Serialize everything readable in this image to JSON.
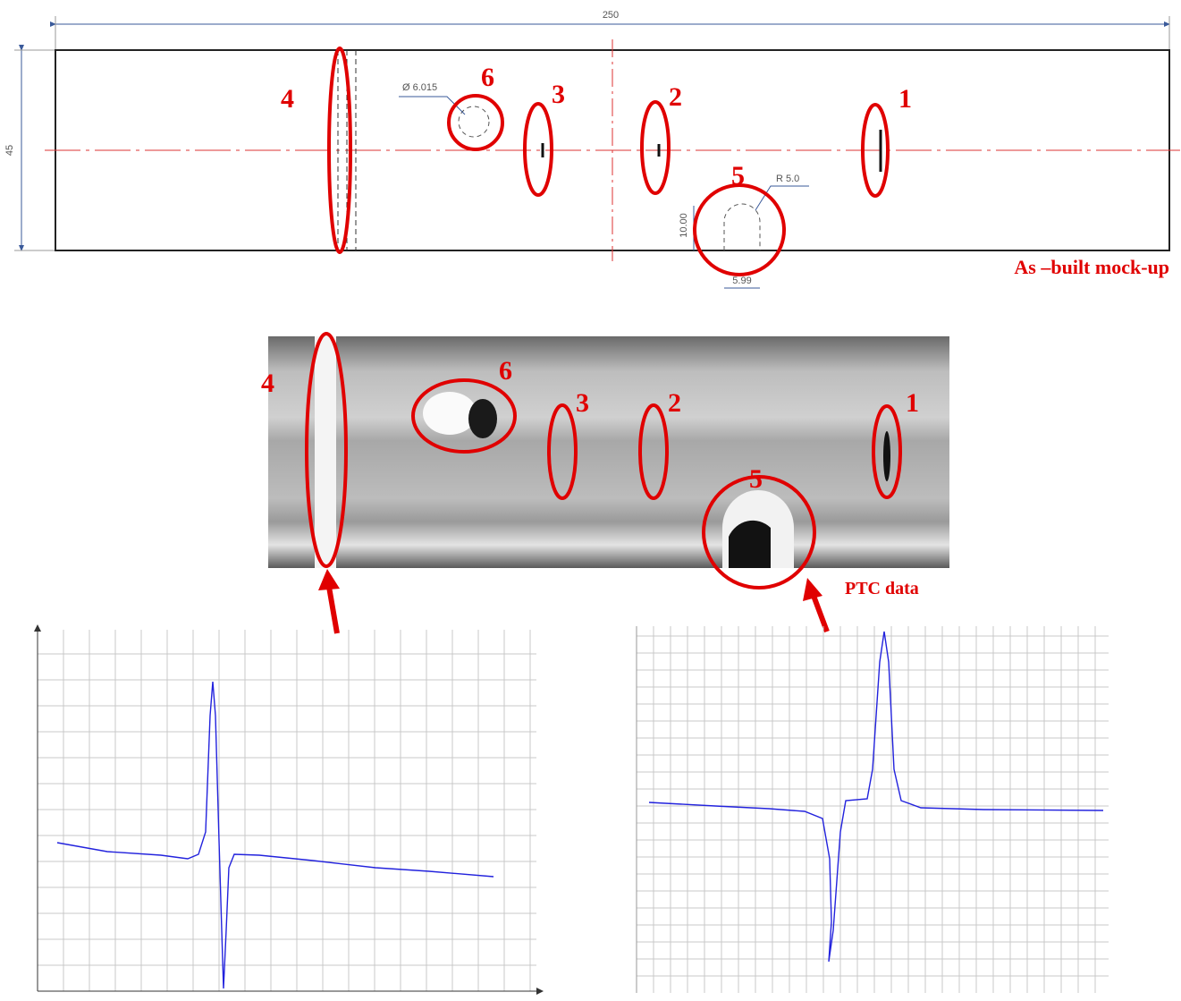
{
  "drawing": {
    "overall_length": "250",
    "height": "45",
    "hole_diameter": "Ø 6.015",
    "slot_radius": "R 5.0",
    "slot_depth": "10.00",
    "slot_width": "5.99",
    "labels": [
      "1",
      "2",
      "3",
      "4",
      "5",
      "6"
    ],
    "caption": "As –built mock-up"
  },
  "ptc_image": {
    "labels": [
      "1",
      "2",
      "3",
      "4",
      "5",
      "6"
    ],
    "caption": "PTC data"
  }
}
